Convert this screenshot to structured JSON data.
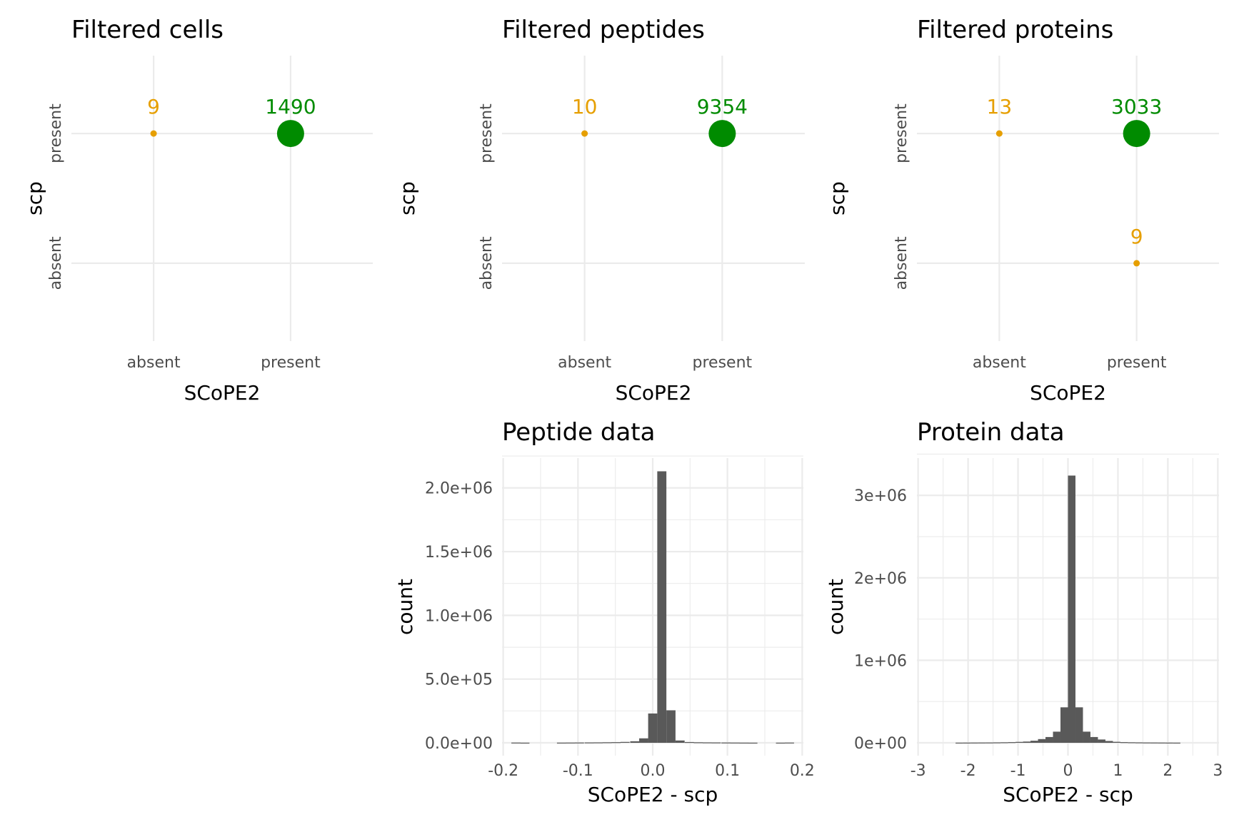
{
  "colors": {
    "absent_present_mismatch": "#E69F00",
    "match": "#009E73",
    "match_rendered": "#008B00",
    "histogram_bars": "#595959",
    "grid": "#EBEBEB"
  },
  "chart_data": [
    {
      "type": "scatter",
      "title": "Filtered cells",
      "xlabel": "SCoPE2",
      "ylabel": "scp",
      "x_categories": [
        "absent",
        "present"
      ],
      "y_categories": [
        "absent",
        "present"
      ],
      "points": [
        {
          "x": "absent",
          "y": "present",
          "n": 9,
          "label": "9",
          "color": "#E69F00"
        },
        {
          "x": "present",
          "y": "present",
          "n": 1490,
          "label": "1490",
          "color": "#008B00"
        }
      ],
      "grid": true
    },
    {
      "type": "scatter",
      "title": "Filtered peptides",
      "xlabel": "SCoPE2",
      "ylabel": "scp",
      "x_categories": [
        "absent",
        "present"
      ],
      "y_categories": [
        "absent",
        "present"
      ],
      "points": [
        {
          "x": "absent",
          "y": "present",
          "n": 10,
          "label": "10",
          "color": "#E69F00"
        },
        {
          "x": "present",
          "y": "present",
          "n": 9354,
          "label": "9354",
          "color": "#008B00"
        }
      ],
      "grid": true
    },
    {
      "type": "scatter",
      "title": "Filtered proteins",
      "xlabel": "SCoPE2",
      "ylabel": "scp",
      "x_categories": [
        "absent",
        "present"
      ],
      "y_categories": [
        "absent",
        "present"
      ],
      "points": [
        {
          "x": "absent",
          "y": "present",
          "n": 13,
          "label": "13",
          "color": "#E69F00"
        },
        {
          "x": "present",
          "y": "present",
          "n": 3033,
          "label": "3033",
          "color": "#008B00"
        },
        {
          "x": "present",
          "y": "absent",
          "n": 9,
          "label": "9",
          "color": "#E69F00"
        }
      ],
      "grid": true
    },
    {
      "type": "bar",
      "subtype": "histogram",
      "title": "Peptide data",
      "xlabel": "SCoPE2 - scp",
      "ylabel": "count",
      "xlim": [
        -0.2,
        0.2
      ],
      "ylim": [
        0,
        2200000
      ],
      "x_ticks": [
        -0.2,
        -0.1,
        0.0,
        0.1,
        0.2
      ],
      "x_tick_labels": [
        "-0.2",
        "-0.1",
        "0.0",
        "0.1",
        "0.2"
      ],
      "y_ticks": [
        0,
        500000,
        1000000,
        1500000,
        2000000
      ],
      "y_tick_labels": [
        "0.0e+00",
        "5.0e+05",
        "1.0e+06",
        "1.5e+06",
        "2.0e+06"
      ],
      "bin_width": 0.0122,
      "bins": [
        {
          "x": -0.183,
          "count": 1500
        },
        {
          "x": -0.171,
          "count": 800
        },
        {
          "x": -0.122,
          "count": 1000
        },
        {
          "x": -0.11,
          "count": 1500
        },
        {
          "x": -0.098,
          "count": 2000
        },
        {
          "x": -0.085,
          "count": 2500
        },
        {
          "x": -0.073,
          "count": 3000
        },
        {
          "x": -0.061,
          "count": 4000
        },
        {
          "x": -0.049,
          "count": 5000
        },
        {
          "x": -0.037,
          "count": 7000
        },
        {
          "x": -0.024,
          "count": 12000
        },
        {
          "x": -0.012,
          "count": 35000
        },
        {
          "x": 0.0,
          "count": 230000
        },
        {
          "x": 0.0122,
          "count": 2130000
        },
        {
          "x": 0.0244,
          "count": 255000
        },
        {
          "x": 0.0366,
          "count": 18000
        },
        {
          "x": 0.049,
          "count": 6000
        },
        {
          "x": 0.061,
          "count": 4000
        },
        {
          "x": 0.073,
          "count": 3000
        },
        {
          "x": 0.085,
          "count": 2500
        },
        {
          "x": 0.098,
          "count": 2000
        },
        {
          "x": 0.11,
          "count": 1500
        },
        {
          "x": 0.122,
          "count": 1000
        },
        {
          "x": 0.134,
          "count": 800
        },
        {
          "x": 0.171,
          "count": 800
        },
        {
          "x": 0.183,
          "count": 1500
        }
      ],
      "grid": true
    },
    {
      "type": "bar",
      "subtype": "histogram",
      "title": "Protein data",
      "xlabel": "SCoPE2 - scp",
      "ylabel": "count",
      "xlim": [
        -3,
        3
      ],
      "ylim": [
        0,
        3400000
      ],
      "x_ticks": [
        -3,
        -2,
        -1,
        0,
        1,
        2,
        3
      ],
      "x_tick_labels": [
        "-3",
        "-2",
        "-1",
        "0",
        "1",
        "2",
        "3"
      ],
      "y_ticks": [
        0,
        1000000,
        2000000,
        3000000
      ],
      "y_tick_labels": [
        "0e+00",
        "1e+06",
        "2e+06",
        "3e+06"
      ],
      "bin_width": 0.15,
      "bins": [
        {
          "x": -2.175,
          "count": 1500
        },
        {
          "x": -2.025,
          "count": 2000
        },
        {
          "x": -1.875,
          "count": 2500
        },
        {
          "x": -1.725,
          "count": 3000
        },
        {
          "x": -1.575,
          "count": 3500
        },
        {
          "x": -1.425,
          "count": 4500
        },
        {
          "x": -1.275,
          "count": 6000
        },
        {
          "x": -1.125,
          "count": 8000
        },
        {
          "x": -0.975,
          "count": 11000
        },
        {
          "x": -0.825,
          "count": 15000
        },
        {
          "x": -0.675,
          "count": 25000
        },
        {
          "x": -0.525,
          "count": 45000
        },
        {
          "x": -0.375,
          "count": 70000
        },
        {
          "x": -0.225,
          "count": 135000
        },
        {
          "x": -0.075,
          "count": 430000
        },
        {
          "x": 0.075,
          "count": 3240000
        },
        {
          "x": 0.225,
          "count": 430000
        },
        {
          "x": 0.375,
          "count": 135000
        },
        {
          "x": 0.525,
          "count": 70000
        },
        {
          "x": 0.675,
          "count": 40000
        },
        {
          "x": 0.825,
          "count": 22000
        },
        {
          "x": 0.975,
          "count": 12000
        },
        {
          "x": 1.125,
          "count": 8000
        },
        {
          "x": 1.275,
          "count": 6000
        },
        {
          "x": 1.425,
          "count": 4500
        },
        {
          "x": 1.575,
          "count": 3500
        },
        {
          "x": 1.725,
          "count": 3000
        },
        {
          "x": 1.875,
          "count": 2500
        },
        {
          "x": 2.025,
          "count": 2000
        },
        {
          "x": 2.175,
          "count": 1500
        }
      ],
      "grid": true
    }
  ]
}
